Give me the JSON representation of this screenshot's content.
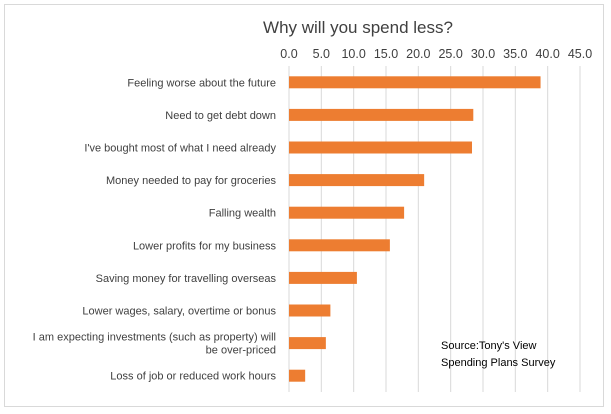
{
  "chart_data": {
    "type": "bar",
    "orientation": "horizontal",
    "title": "Why will you spend less?",
    "xlim": [
      0,
      45
    ],
    "ticks": [
      "0.0",
      "5.0",
      "10.0",
      "15.0",
      "20.0",
      "25.0",
      "30.0",
      "35.0",
      "40.0",
      "45.0"
    ],
    "tick_values": [
      0,
      5,
      10,
      15,
      20,
      25,
      30,
      35,
      40,
      45
    ],
    "axis_position": "top",
    "grid": true,
    "bar_color": "#ED7D31",
    "categories": [
      [
        "Feeling worse about the future"
      ],
      [
        "Need to get debt down"
      ],
      [
        "I've bought most of what I need already"
      ],
      [
        "Money needed to pay for groceries"
      ],
      [
        "Falling wealth"
      ],
      [
        "Lower profits for my business"
      ],
      [
        "Saving money for travelling overseas"
      ],
      [
        "Lower wages, salary, overtime or bonus"
      ],
      [
        "I am expecting investments (such as property) will",
        "be over-priced"
      ],
      [
        "Loss of job or reduced work hours"
      ]
    ],
    "values": [
      38.9,
      28.5,
      28.3,
      20.9,
      17.8,
      15.6,
      10.5,
      6.4,
      5.7,
      2.5
    ],
    "annotation": {
      "lines": [
        "Source:Tony's View",
        "Spending Plans Survey"
      ],
      "placement": "bottom-right"
    }
  }
}
